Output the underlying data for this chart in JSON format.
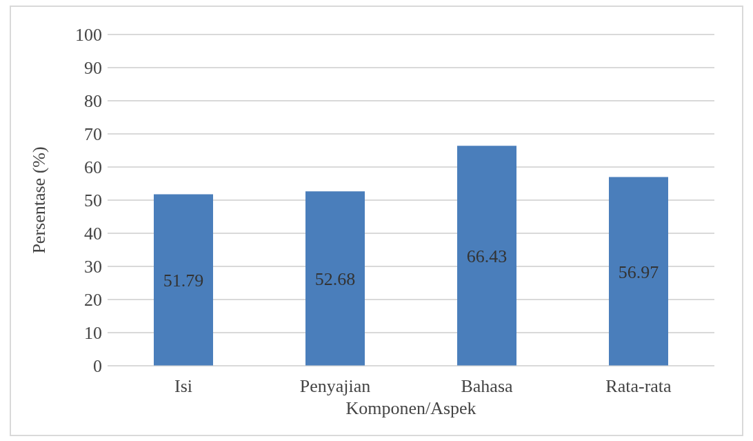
{
  "chart_data": {
    "type": "bar",
    "xlabel": "Komponen/Aspek",
    "ylabel": "Persentase (%)",
    "categories": [
      "Isi",
      "Penyajian",
      "Bahasa",
      "Rata-rata"
    ],
    "values": [
      51.79,
      52.68,
      66.43,
      56.97
    ],
    "color": "#4a7ebb",
    "ylim": [
      0,
      100
    ],
    "yticks": [
      0,
      10,
      20,
      30,
      40,
      50,
      60,
      70,
      80,
      90,
      100
    ],
    "grid": "y",
    "data_labels": true
  }
}
